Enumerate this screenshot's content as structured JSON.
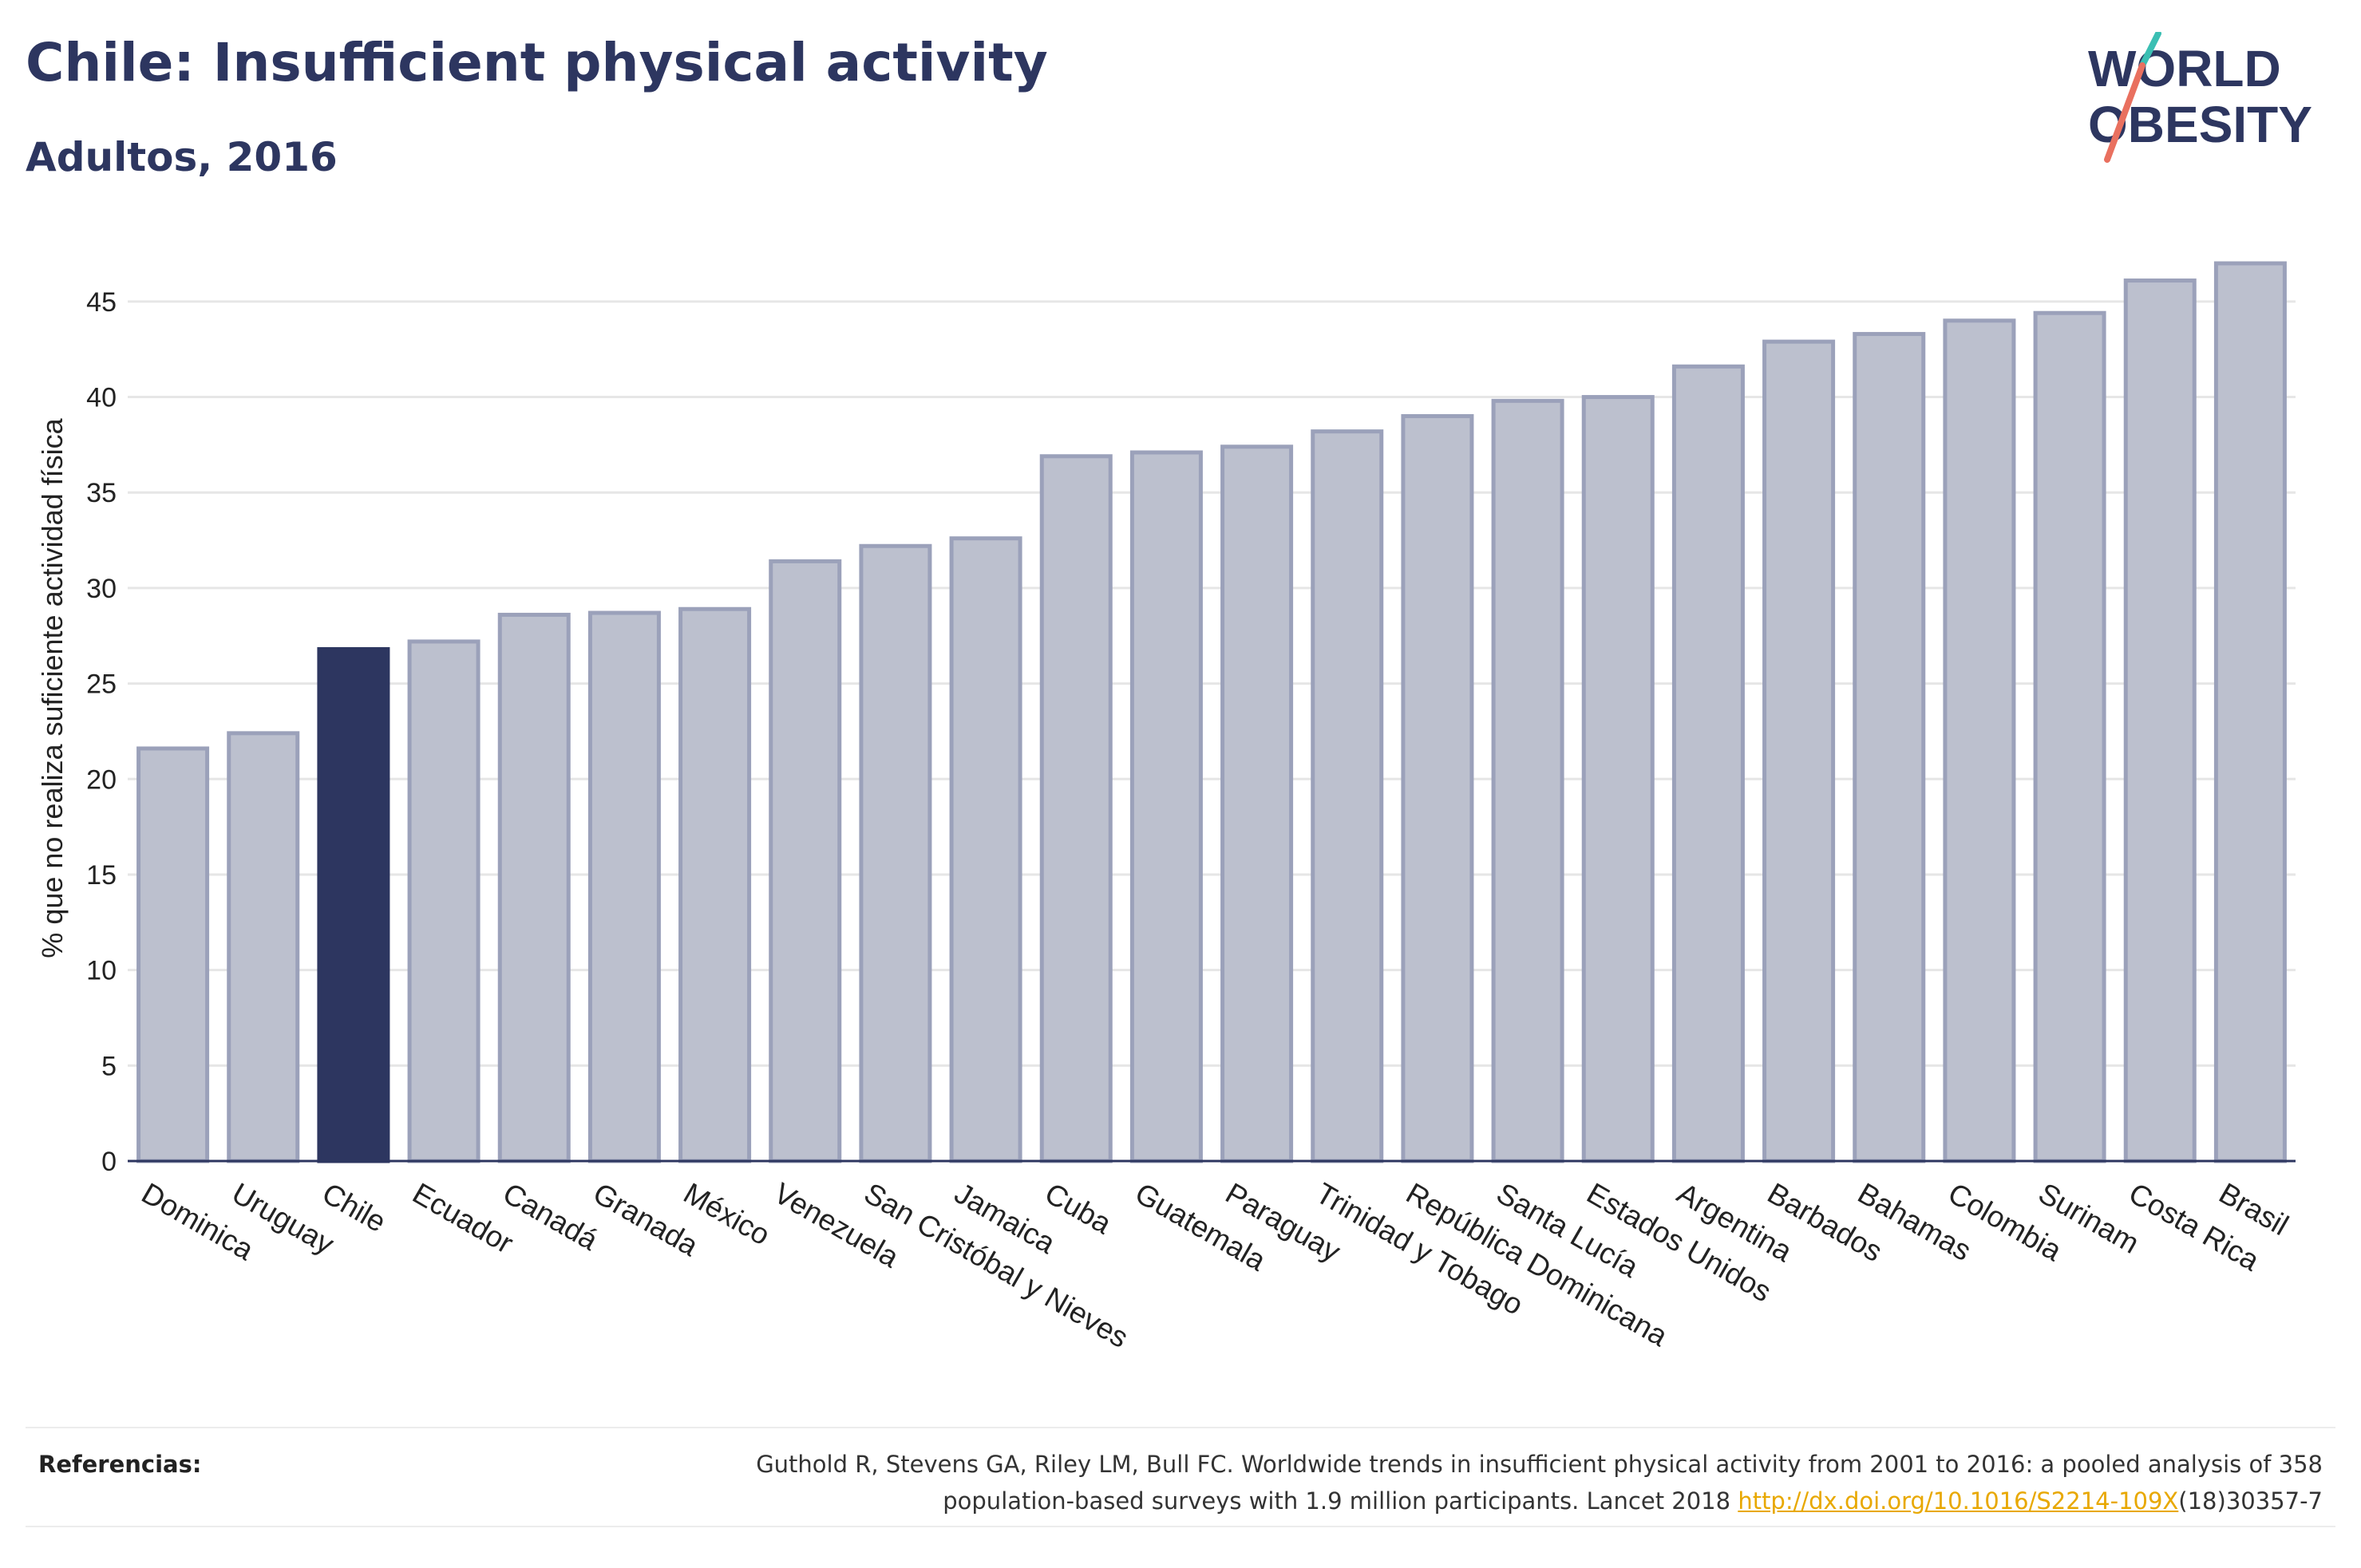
{
  "header": {
    "title": "Chile: Insufficient physical activity",
    "subtitle": "Adultos, 2016"
  },
  "logo": {
    "line1": "WORLD",
    "line2": "OBESITY"
  },
  "chart_data": {
    "type": "bar",
    "ylabel": "% que no realiza suficiente actividad física",
    "ylim": [
      0,
      47
    ],
    "yticks": [
      0,
      5,
      10,
      15,
      20,
      25,
      30,
      35,
      40,
      45
    ],
    "grid": true,
    "highlight": "Chile",
    "colors": {
      "bar": "#bcc0ce",
      "bar_border": "#9ba1ba",
      "highlight": "#2d3660",
      "axis": "#2d3660",
      "grid": "#e6e6e6"
    },
    "categories": [
      "Dominica",
      "Uruguay",
      "Chile",
      "Ecuador",
      "Canadá",
      "Granada",
      "México",
      "Venezuela",
      "San Cristóbal y Nieves",
      "Jamaica",
      "Cuba",
      "Guatemala",
      "Paraguay",
      "Trinidad y Tobago",
      "República Dominicana",
      "Santa Lucía",
      "Estados Unidos",
      "Argentina",
      "Barbados",
      "Bahamas",
      "Colombia",
      "Surinam",
      "Costa Rica",
      "Brasil"
    ],
    "values": [
      21.6,
      22.4,
      26.8,
      27.2,
      28.6,
      28.7,
      28.9,
      31.4,
      32.2,
      32.6,
      36.9,
      37.1,
      37.4,
      38.2,
      39.0,
      39.8,
      40.0,
      41.6,
      42.9,
      43.3,
      44.0,
      44.4,
      46.1,
      47.0
    ]
  },
  "footer": {
    "ref_label": "Referencias:",
    "ref_line1": "Guthold R, Stevens GA, Riley LM, Bull FC. Worldwide trends in insufficient physical activity from 2001 to 2016: a pooled analysis of 358",
    "ref_line2_pre": "population-based surveys with 1.9 million participants. Lancet 2018 ",
    "ref_link": "http://dx.doi.org/10.1016/S2214-109X",
    "ref_line2_post": "(18)30357-7"
  }
}
